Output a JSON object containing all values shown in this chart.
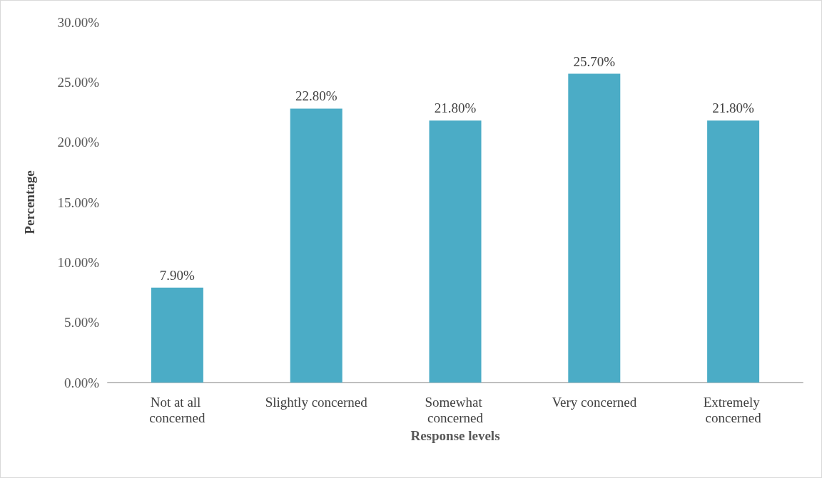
{
  "chart_data": {
    "type": "bar",
    "xlabel": "Response levels",
    "ylabel": "Percentage",
    "categories": [
      "Not at all concerned",
      "Slightly concerned",
      "Somewhat concerned",
      "Very concerned",
      "Extremely concerned"
    ],
    "values": [
      7.9,
      22.8,
      21.8,
      25.7,
      21.8
    ],
    "value_labels": [
      "7.90%",
      "22.80%",
      "21.80%",
      "25.70%",
      "21.80%"
    ],
    "color": "#4bacc6",
    "ylim": [
      0,
      30
    ],
    "yticks": [
      {
        "value": 0,
        "label": "0.00%"
      },
      {
        "value": 5,
        "label": "5.00%"
      },
      {
        "value": 10,
        "label": "10.00%"
      },
      {
        "value": 15,
        "label": "15.00%"
      },
      {
        "value": 20,
        "label": "20.00%"
      },
      {
        "value": 25,
        "label": "25.00%"
      },
      {
        "value": 30,
        "label": "30.00%"
      }
    ],
    "grid": false
  }
}
